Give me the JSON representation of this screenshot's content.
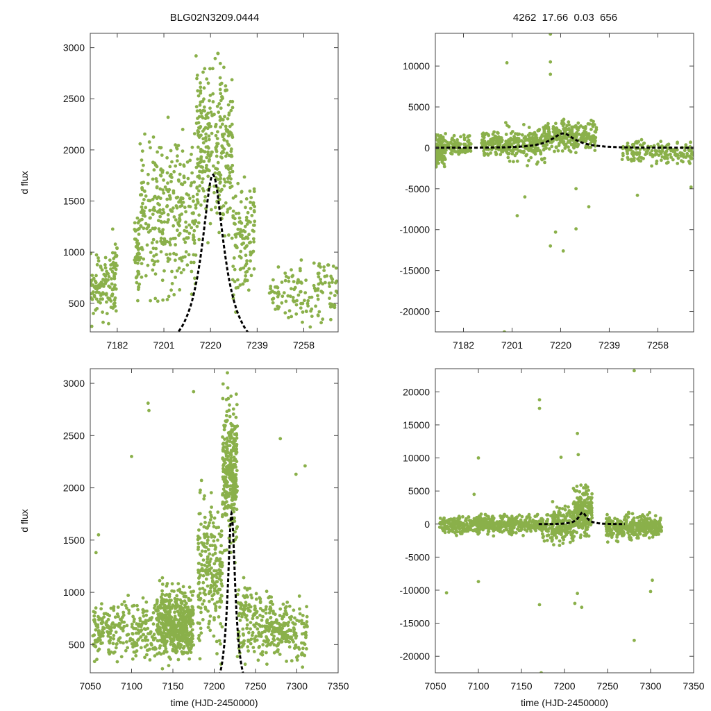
{
  "figure": {
    "title_left": "BLG02N3209.0444",
    "title_right": "4262  17.66  0.03  656",
    "colors": {
      "points": "#8ab04a",
      "model": "#000000",
      "axes": "#444444"
    }
  },
  "chart_data": [
    {
      "id": "top-left",
      "type": "scatter",
      "title": "BLG02N3209.0444",
      "xlabel": "",
      "ylabel": "d flux",
      "xlim": [
        7171,
        7272
      ],
      "ylim": [
        220,
        3140
      ],
      "xticks": [
        7182,
        7201,
        7220,
        7239,
        7258
      ],
      "yticks": [
        500,
        1000,
        1500,
        2000,
        2500,
        3000
      ],
      "model": {
        "t0": 7221,
        "tE": 13,
        "u0": 0.34,
        "base": 0,
        "scale": 850,
        "x_range": [
          7171,
          7272
        ]
      },
      "scatter": {
        "seed": 11,
        "segments": [
          {
            "x0": 7171,
            "x1": 7180,
            "n": 90,
            "ymin": 230,
            "ymax": 1100
          },
          {
            "x0": 7180,
            "x1": 7182,
            "n": 40,
            "ymin": 230,
            "ymax": 1250
          },
          {
            "x0": 7189,
            "x1": 7191,
            "n": 45,
            "ymin": 240,
            "ymax": 1600
          },
          {
            "x0": 7191,
            "x1": 7214,
            "n": 320,
            "ymin": 240,
            "ymax": 2500
          },
          {
            "x0": 7214,
            "x1": 7229,
            "n": 300,
            "ymin": 900,
            "ymax": 3100
          },
          {
            "x0": 7229,
            "x1": 7238,
            "n": 120,
            "ymin": 300,
            "ymax": 2000
          },
          {
            "x0": 7244,
            "x1": 7272,
            "n": 140,
            "ymin": 230,
            "ymax": 1000
          }
        ]
      }
    },
    {
      "id": "top-right",
      "type": "scatter",
      "title": "4262  17.66  0.03  656",
      "xlabel": "",
      "ylabel": "",
      "xlim": [
        7171,
        7272
      ],
      "ylim": [
        -22500,
        14000
      ],
      "xticks": [
        7182,
        7201,
        7220,
        7239,
        7258
      ],
      "yticks": [
        10000,
        5000,
        0,
        -5000,
        -10000,
        -15000,
        -20000
      ],
      "model": {
        "t0": 7221,
        "tE": 13,
        "u0": 0.34,
        "base": 0,
        "scale": 850,
        "x_range": [
          7171,
          7272
        ]
      },
      "scatter": {
        "seed": 23,
        "segments": [
          {
            "x0": 7171,
            "x1": 7175,
            "n": 140,
            "ymin": -3000,
            "ymax": 2500
          },
          {
            "x0": 7175,
            "x1": 7185,
            "n": 80,
            "ymin": -1500,
            "ymax": 2000
          },
          {
            "x0": 7189,
            "x1": 7198,
            "n": 120,
            "ymin": -1500,
            "ymax": 2500
          },
          {
            "x0": 7198,
            "x1": 7214,
            "n": 200,
            "ymin": -2500,
            "ymax": 3500
          },
          {
            "x0": 7214,
            "x1": 7234,
            "n": 260,
            "ymin": -1000,
            "ymax": 4000
          },
          {
            "x0": 7244,
            "x1": 7272,
            "n": 170,
            "ymin": -2500,
            "ymax": 1500
          }
        ],
        "outliers": [
          [
            7199,
            10400
          ],
          [
            7216,
            10500
          ],
          [
            7216,
            9000
          ],
          [
            7218,
            -10300
          ],
          [
            7221,
            -12600
          ],
          [
            7216,
            -12000
          ],
          [
            7198,
            -22500
          ],
          [
            7216,
            13900
          ],
          [
            7203,
            -8300
          ],
          [
            7231,
            -7200
          ],
          [
            7250,
            -5800
          ],
          [
            7271,
            -4800
          ],
          [
            7226,
            -5000
          ],
          [
            7226,
            -9900
          ],
          [
            7206,
            -6000
          ]
        ]
      }
    },
    {
      "id": "bottom-left",
      "type": "scatter",
      "title": "",
      "xlabel": "time (HJD-2450000)",
      "ylabel": "d flux",
      "xlim": [
        7050,
        7350
      ],
      "ylim": [
        230,
        3140
      ],
      "xticks": [
        7050,
        7100,
        7150,
        7200,
        7250,
        7300,
        7350
      ],
      "yticks": [
        500,
        1000,
        1500,
        2000,
        2500,
        3000
      ],
      "model": {
        "t0": 7221,
        "tE": 13,
        "u0": 0.34,
        "base": 0,
        "scale": 850,
        "x_range": [
          7165,
          7275
        ]
      },
      "scatter": {
        "seed": 37,
        "segments": [
          {
            "x0": 7053,
            "x1": 7130,
            "n": 260,
            "ymin": 240,
            "ymax": 1000
          },
          {
            "x0": 7130,
            "x1": 7175,
            "n": 520,
            "ymin": 240,
            "ymax": 1200
          },
          {
            "x0": 7180,
            "x1": 7210,
            "n": 240,
            "ymin": 240,
            "ymax": 2200
          },
          {
            "x0": 7210,
            "x1": 7228,
            "n": 300,
            "ymin": 1200,
            "ymax": 3100
          },
          {
            "x0": 7228,
            "x1": 7270,
            "n": 180,
            "ymin": 240,
            "ymax": 1200
          },
          {
            "x0": 7270,
            "x1": 7313,
            "n": 160,
            "ymin": 240,
            "ymax": 1000
          }
        ],
        "outliers": [
          [
            7120,
            2810
          ],
          [
            7121,
            2740
          ],
          [
            7100,
            2300
          ],
          [
            7060,
            1550
          ],
          [
            7057,
            1380
          ],
          [
            7175,
            2920
          ],
          [
            7280,
            2470
          ],
          [
            7310,
            2210
          ],
          [
            7299,
            2130
          ],
          [
            7216,
            3100
          ]
        ]
      }
    },
    {
      "id": "bottom-right",
      "type": "scatter",
      "title": "",
      "xlabel": "time (HJD-2450000)",
      "ylabel": "",
      "xlim": [
        7050,
        7350
      ],
      "ylim": [
        -22500,
        23500
      ],
      "xticks": [
        7050,
        7100,
        7150,
        7200,
        7250,
        7300,
        7350
      ],
      "yticks": [
        20000,
        15000,
        10000,
        5000,
        0,
        -5000,
        -10000,
        -15000,
        -20000
      ],
      "model": {
        "t0": 7221,
        "tE": 13,
        "u0": 0.34,
        "base": 0,
        "scale": 850,
        "x_range": [
          7170,
          7270
        ]
      },
      "scatter": {
        "seed": 51,
        "segments": [
          {
            "x0": 7055,
            "x1": 7175,
            "n": 520,
            "ymin": -2000,
            "ymax": 1800
          },
          {
            "x0": 7175,
            "x1": 7210,
            "n": 200,
            "ymin": -4000,
            "ymax": 3500
          },
          {
            "x0": 7210,
            "x1": 7232,
            "n": 220,
            "ymin": -3000,
            "ymax": 6500
          },
          {
            "x0": 7248,
            "x1": 7313,
            "n": 380,
            "ymin": -3000,
            "ymax": 2000
          }
        ],
        "outliers": [
          [
            7171,
            18800
          ],
          [
            7171,
            17500
          ],
          [
            7281,
            23200
          ],
          [
            7215,
            13700
          ],
          [
            7216,
            10500
          ],
          [
            7196,
            10100
          ],
          [
            7100,
            10000
          ],
          [
            7063,
            -10400
          ],
          [
            7100,
            -8700
          ],
          [
            7171,
            -12200
          ],
          [
            7212,
            -12000
          ],
          [
            7215,
            -10500
          ],
          [
            7220,
            -12600
          ],
          [
            7300,
            -10200
          ],
          [
            7302,
            -8500
          ],
          [
            7173,
            -22500
          ],
          [
            7281,
            -17600
          ],
          [
            7095,
            4500
          ]
        ]
      }
    }
  ]
}
